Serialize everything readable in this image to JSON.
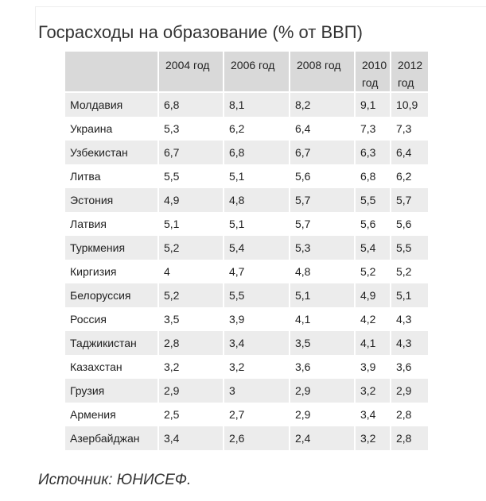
{
  "title": "Госрасходы на образование (% от ВВП)",
  "table": {
    "header": [
      "2004 год",
      "2006 год",
      "2008 год",
      "2010 год",
      "2012 год"
    ],
    "rows": [
      [
        "Молдавия",
        "6,8",
        "8,1",
        "8,2",
        "9,1",
        "10,9"
      ],
      [
        "Украина",
        "5,3",
        "6,2",
        "6,4",
        "7,3",
        "7,3"
      ],
      [
        "Узбекистан",
        "6,7",
        "6,8",
        "6,7",
        "6,3",
        "6,4"
      ],
      [
        "Литва",
        "5,5",
        "5,1",
        "5,6",
        "6,8",
        "6,2"
      ],
      [
        "Эстония",
        "4,9",
        "4,8",
        "5,7",
        "5,5",
        "5,7"
      ],
      [
        "Латвия",
        "5,1",
        "5,1",
        "5,7",
        "5,6",
        "5,6"
      ],
      [
        "Туркмения",
        "5,2",
        "5,4",
        "5,3",
        "5,4",
        "5,5"
      ],
      [
        "Киргизия",
        "4",
        "4,7",
        "4,8",
        "5,2",
        "5,2"
      ],
      [
        "Белоруссия",
        "5,2",
        "5,5",
        "5,1",
        "4,9",
        "5,1"
      ],
      [
        "Россия",
        "3,5",
        "3,9",
        "4,1",
        "4,2",
        "4,3"
      ],
      [
        "Таджикистан",
        "2,8",
        "3,4",
        "3,5",
        "4,1",
        "4,3"
      ],
      [
        "Казахстан",
        "3,2",
        "3,2",
        "3,6",
        "3,9",
        "3,6"
      ],
      [
        "Грузия",
        "2,9",
        "3",
        "2,9",
        "3,2",
        "2,9"
      ],
      [
        "Армения",
        "2,5",
        "2,7",
        "2,9",
        "3,4",
        "2,8"
      ],
      [
        "Азербайджан",
        "3,4",
        "2,6",
        "2,4",
        "3,2",
        "2,8"
      ]
    ]
  },
  "source": "Источник: ЮНИСЕФ."
}
